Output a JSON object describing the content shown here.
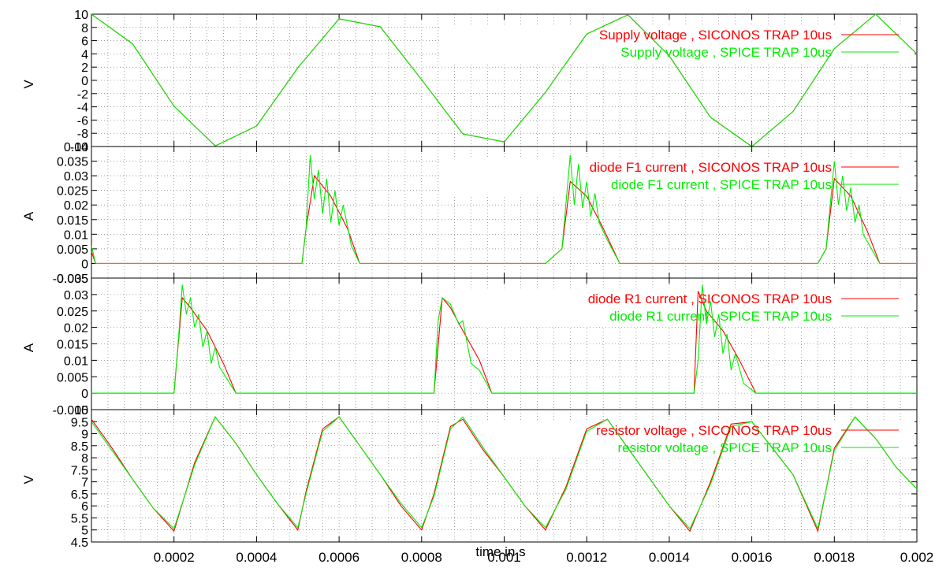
{
  "xlabel": "time in s",
  "x_ticks": [
    {
      "v": 0.0002,
      "label": "0.0002"
    },
    {
      "v": 0.0004,
      "label": "0.0004"
    },
    {
      "v": 0.0006,
      "label": "0.0006"
    },
    {
      "v": 0.0008,
      "label": "0.0008"
    },
    {
      "v": 0.001,
      "label": "0.001"
    },
    {
      "v": 0.0012,
      "label": "0.0012"
    },
    {
      "v": 0.0014,
      "label": "0.0014"
    },
    {
      "v": 0.0016,
      "label": "0.0016"
    },
    {
      "v": 0.0018,
      "label": "0.0018"
    },
    {
      "v": 0.002,
      "label": "0.002"
    }
  ],
  "colors": {
    "siconos": "#ff0000",
    "spice": "#00ee00",
    "grid": "#666666",
    "axis": "#000000"
  },
  "chart_data": [
    {
      "type": "line",
      "ylabel": "V",
      "xlim": [
        0,
        0.002
      ],
      "ylim": [
        -10,
        10
      ],
      "yticks": [
        {
          "v": -10,
          "label": "-10"
        },
        {
          "v": -8,
          "label": "-8"
        },
        {
          "v": -6,
          "label": "-6"
        },
        {
          "v": -4,
          "label": "-4"
        },
        {
          "v": -2,
          "label": "-2"
        },
        {
          "v": 0,
          "label": "0"
        },
        {
          "v": 2,
          "label": "2"
        },
        {
          "v": 4,
          "label": "4"
        },
        {
          "v": 6,
          "label": "6"
        },
        {
          "v": 8,
          "label": "8"
        },
        {
          "v": 10,
          "label": "10"
        }
      ],
      "legend_position": "top-right",
      "series": [
        {
          "name": "Supply voltage , SICONOS TRAP 10us",
          "color": "siconos",
          "x": [
            0,
            0.0001,
            0.0002,
            0.0003,
            0.0004,
            0.0005,
            0.0006,
            0.0007,
            0.0008,
            0.0009,
            0.001,
            0.0011,
            0.0012,
            0.0013,
            0.0014,
            0.0015,
            0.0016,
            0.0017,
            0.0018,
            0.0019,
            0.002
          ],
          "values": [
            10,
            5.5,
            -3.9,
            -9.9,
            -6.9,
            1.9,
            9.3,
            8.1,
            0.1,
            -8.1,
            -9.3,
            -1.8,
            7.0,
            9.9,
            3.7,
            -5.6,
            -10.0,
            -4.7,
            4.8,
            10.0,
            4.0
          ]
        },
        {
          "name": "Supply voltage , SPICE   TRAP 10us",
          "color": "spice",
          "x": [
            0,
            0.0001,
            0.0002,
            0.0003,
            0.0004,
            0.0005,
            0.0006,
            0.0007,
            0.0008,
            0.0009,
            0.001,
            0.0011,
            0.0012,
            0.0013,
            0.0014,
            0.0015,
            0.0016,
            0.0017,
            0.0018,
            0.0019,
            0.002
          ],
          "values": [
            10,
            5.5,
            -3.9,
            -9.9,
            -6.9,
            1.9,
            9.3,
            8.1,
            0.1,
            -8.1,
            -9.3,
            -1.8,
            7.0,
            9.9,
            3.7,
            -5.6,
            -10.0,
            -4.7,
            4.8,
            10.0,
            4.0
          ]
        }
      ]
    },
    {
      "type": "line",
      "ylabel": "A",
      "xlim": [
        0,
        0.002
      ],
      "ylim": [
        -0.005,
        0.04
      ],
      "yticks": [
        {
          "v": -0.005,
          "label": "-0.005"
        },
        {
          "v": 0,
          "label": "0"
        },
        {
          "v": 0.005,
          "label": "0.005"
        },
        {
          "v": 0.01,
          "label": "0.01"
        },
        {
          "v": 0.015,
          "label": "0.015"
        },
        {
          "v": 0.02,
          "label": "0.02"
        },
        {
          "v": 0.025,
          "label": "0.025"
        },
        {
          "v": 0.03,
          "label": "0.03"
        },
        {
          "v": 0.035,
          "label": "0.035"
        },
        {
          "v": 0.04,
          "label": "0.04"
        }
      ],
      "legend_position": "top-right",
      "series": [
        {
          "name": "diode F1 current , SICONOS TRAP 10us",
          "color": "siconos",
          "x": [
            0,
            1e-05,
            4e-05,
            0.00051,
            0.00052,
            0.00054,
            0.00058,
            0.00062,
            0.00065,
            0.0011,
            0.00114,
            0.00116,
            0.0012,
            0.00124,
            0.00128,
            0.00176,
            0.00178,
            0.0018,
            0.00184,
            0.00188,
            0.00191,
            0.002
          ],
          "values": [
            0.004,
            0,
            0,
            0,
            0.012,
            0.03,
            0.023,
            0.012,
            0,
            0,
            0.005,
            0.028,
            0.023,
            0.012,
            0,
            0,
            0.005,
            0.029,
            0.023,
            0.011,
            0,
            0
          ]
        },
        {
          "name": "diode F1 current , SPICE   TRAP 10us",
          "color": "spice",
          "x": [
            0,
            1e-05,
            4e-05,
            0.00051,
            0.00052,
            0.00053,
            0.00054,
            0.00055,
            0.00056,
            0.00057,
            0.00058,
            0.00059,
            0.0006,
            0.00061,
            0.00063,
            0.00065,
            0.0011,
            0.00114,
            0.00116,
            0.00117,
            0.00118,
            0.00119,
            0.0012,
            0.00121,
            0.00122,
            0.00123,
            0.00125,
            0.00128,
            0.00176,
            0.00178,
            0.0018,
            0.00181,
            0.00182,
            0.00183,
            0.00184,
            0.00185,
            0.00186,
            0.00187,
            0.00189,
            0.00191,
            0.002
          ],
          "values": [
            0.006,
            0,
            0,
            0,
            0.012,
            0.037,
            0.022,
            0.032,
            0.017,
            0.029,
            0.014,
            0.025,
            0.013,
            0.02,
            0.006,
            0,
            0,
            0.005,
            0.037,
            0.02,
            0.034,
            0.019,
            0.028,
            0.016,
            0.024,
            0.014,
            0.008,
            0,
            0,
            0.005,
            0.035,
            0.02,
            0.03,
            0.018,
            0.026,
            0.014,
            0.02,
            0.01,
            0.005,
            0,
            0
          ]
        }
      ]
    },
    {
      "type": "line",
      "ylabel": "A",
      "xlim": [
        0,
        0.002
      ],
      "ylim": [
        -0.005,
        0.035
      ],
      "yticks": [
        {
          "v": -0.005,
          "label": "-0.005"
        },
        {
          "v": 0,
          "label": "0"
        },
        {
          "v": 0.005,
          "label": "0.005"
        },
        {
          "v": 0.01,
          "label": "0.01"
        },
        {
          "v": 0.015,
          "label": "0.015"
        },
        {
          "v": 0.02,
          "label": "0.02"
        },
        {
          "v": 0.025,
          "label": "0.025"
        },
        {
          "v": 0.03,
          "label": "0.03"
        },
        {
          "v": 0.035,
          "label": "0.035"
        }
      ],
      "legend_position": "top-right",
      "series": [
        {
          "name": "diode R1 current , SICONOS TRAP 10us",
          "color": "siconos",
          "x": [
            0,
            0.0002,
            0.00022,
            0.00024,
            0.00028,
            0.00032,
            0.00035,
            0.00083,
            0.00085,
            0.00087,
            0.0009,
            0.00094,
            0.00097,
            0.00146,
            0.00147,
            0.00149,
            0.00153,
            0.00157,
            0.00161,
            0.002
          ],
          "values": [
            0,
            0,
            0.029,
            0.026,
            0.019,
            0.009,
            0,
            0,
            0.029,
            0.026,
            0.019,
            0.01,
            0,
            0,
            0.031,
            0.025,
            0.019,
            0.01,
            0,
            0
          ]
        },
        {
          "name": "diode R1 current , SPICE   TRAP 10us",
          "color": "spice",
          "x": [
            0,
            0.0002,
            0.00021,
            0.00022,
            0.00023,
            0.00024,
            0.00025,
            0.00026,
            0.00027,
            0.00028,
            0.00029,
            0.0003,
            0.00031,
            0.00035,
            0.00083,
            0.00084,
            0.00085,
            0.00087,
            0.00089,
            0.0009,
            0.00092,
            0.00094,
            0.00097,
            0.00146,
            0.00147,
            0.00148,
            0.00149,
            0.0015,
            0.00151,
            0.00152,
            0.00153,
            0.00154,
            0.00155,
            0.00156,
            0.00158,
            0.00161,
            0.002
          ],
          "values": [
            0,
            0,
            0.015,
            0.033,
            0.024,
            0.029,
            0.02,
            0.024,
            0.014,
            0.019,
            0.009,
            0.014,
            0.008,
            0,
            0,
            0.022,
            0.029,
            0.027,
            0.021,
            0.022,
            0.009,
            0.007,
            0,
            0,
            0.01,
            0.033,
            0.021,
            0.028,
            0.017,
            0.024,
            0.012,
            0.018,
            0.007,
            0.012,
            0.003,
            0,
            0
          ]
        }
      ]
    },
    {
      "type": "line",
      "ylabel": "V",
      "xlim": [
        0,
        0.002
      ],
      "ylim": [
        4.5,
        10
      ],
      "yticks": [
        {
          "v": 4.5,
          "label": "4.5"
        },
        {
          "v": 5,
          "label": "5"
        },
        {
          "v": 5.5,
          "label": "5.5"
        },
        {
          "v": 6,
          "label": "6"
        },
        {
          "v": 6.5,
          "label": "6.5"
        },
        {
          "v": 7,
          "label": "7"
        },
        {
          "v": 7.5,
          "label": "7.5"
        },
        {
          "v": 8,
          "label": "8"
        },
        {
          "v": 8.5,
          "label": "8.5"
        },
        {
          "v": 9,
          "label": "9"
        },
        {
          "v": 9.5,
          "label": "9.5"
        },
        {
          "v": 10,
          "label": "10"
        }
      ],
      "legend_position": "top-right",
      "series": [
        {
          "name": "resistor voltage , SICONOS TRAP 10us",
          "color": "siconos",
          "x": [
            0,
            5e-05,
            0.0001,
            0.00015,
            0.0002,
            0.00025,
            0.0003,
            0.00035,
            0.0004,
            0.00045,
            0.0005,
            0.00052,
            0.00056,
            0.0006,
            0.00065,
            0.0007,
            0.00075,
            0.0008,
            0.00083,
            0.00087,
            0.0009,
            0.00095,
            0.001,
            0.00105,
            0.0011,
            0.00115,
            0.0012,
            0.00125,
            0.0013,
            0.00135,
            0.0014,
            0.00145,
            0.0015,
            0.00155,
            0.0016,
            0.00165,
            0.0017,
            0.00176,
            0.0018,
            0.00185,
            0.0019,
            0.00195,
            0.002
          ],
          "values": [
            9.6,
            8.4,
            7.1,
            5.9,
            4.95,
            7.8,
            9.7,
            8.6,
            7.3,
            6.1,
            5.0,
            6.6,
            9.2,
            9.7,
            8.5,
            7.3,
            6.0,
            5.0,
            6.5,
            9.3,
            9.6,
            8.3,
            7.2,
            6.0,
            5.0,
            6.8,
            9.2,
            9.6,
            8.4,
            7.2,
            6.0,
            4.95,
            7.0,
            9.4,
            9.5,
            8.4,
            7.3,
            4.95,
            8.4,
            9.7,
            8.8,
            7.6,
            6.7
          ]
        },
        {
          "name": "resistor voltage , SPICE   TRAP 10us",
          "color": "spice",
          "x": [
            0,
            5e-05,
            0.0001,
            0.00015,
            0.0002,
            0.00025,
            0.0003,
            0.00035,
            0.0004,
            0.00045,
            0.0005,
            0.00052,
            0.00056,
            0.0006,
            0.00065,
            0.0007,
            0.00075,
            0.0008,
            0.00083,
            0.00087,
            0.0009,
            0.00095,
            0.001,
            0.00105,
            0.0011,
            0.00115,
            0.0012,
            0.00125,
            0.0013,
            0.00135,
            0.0014,
            0.00145,
            0.0015,
            0.00155,
            0.0016,
            0.00165,
            0.0017,
            0.00176,
            0.0018,
            0.00185,
            0.0019,
            0.00195,
            0.002
          ],
          "values": [
            9.5,
            8.3,
            7.1,
            5.9,
            5.05,
            7.7,
            9.7,
            8.6,
            7.3,
            6.1,
            5.1,
            6.5,
            9.1,
            9.7,
            8.5,
            7.3,
            6.1,
            5.1,
            6.4,
            9.2,
            9.7,
            8.4,
            7.2,
            6.0,
            5.1,
            6.7,
            9.1,
            9.6,
            8.4,
            7.2,
            6.0,
            5.05,
            6.9,
            9.3,
            9.5,
            8.4,
            7.3,
            5.05,
            8.3,
            9.7,
            8.8,
            7.6,
            6.7
          ]
        }
      ]
    }
  ]
}
